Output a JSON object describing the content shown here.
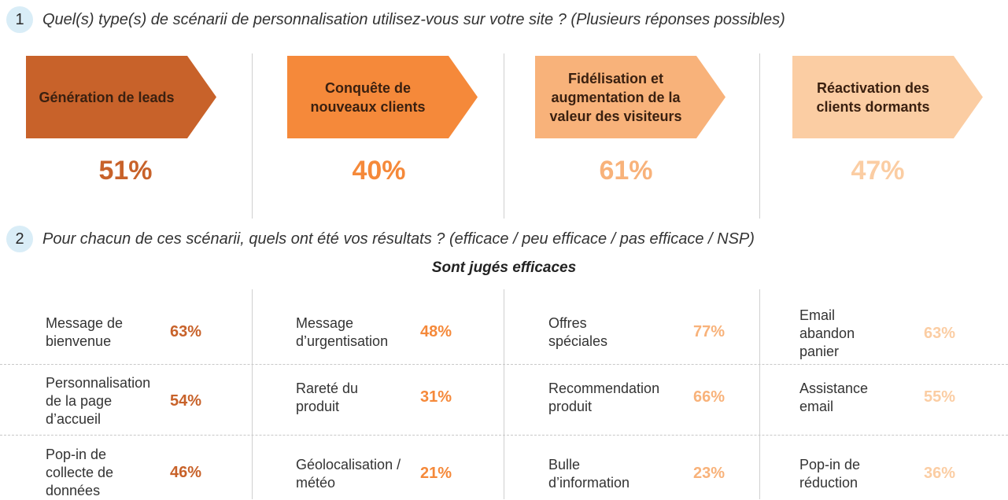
{
  "question1": {
    "number": "1",
    "text": "Quel(s) type(s) de scénarii de personnalisation utilisez-vous sur votre site ? (Plusieurs réponses possibles)"
  },
  "question2": {
    "number": "2",
    "text": "Pour chacun de ces scénarii, quels ont été vos résultats ? (efficace / peu efficace / pas efficace / NSP)"
  },
  "subtitle": "Sont jugés efficaces",
  "colors": {
    "c1": "#c8622a",
    "c2": "#f5893a",
    "c3": "#f8b27a",
    "c4": "#fbcda3"
  },
  "scenarios": [
    {
      "label": "Génération de leads",
      "percent": "51%"
    },
    {
      "label": "Conquête de nouveaux clients",
      "percent": "40%"
    },
    {
      "label": "Fidélisation et augmentation de la valeur des visiteurs",
      "percent": "61%"
    },
    {
      "label": "Réactivation des clients dormants",
      "percent": "47%"
    }
  ],
  "results": [
    [
      {
        "label": "Message de bienvenue",
        "percent": "63%"
      },
      {
        "label": "Personnalisation de la page d’accueil",
        "percent": "54%"
      },
      {
        "label": "Pop-in de collecte de données",
        "percent": "46%"
      }
    ],
    [
      {
        "label": "Message d’urgentisation",
        "percent": "48%"
      },
      {
        "label": "Rareté du produit",
        "percent": "31%"
      },
      {
        "label": "Géolocalisation / météo",
        "percent": "21%"
      }
    ],
    [
      {
        "label": "Offres spéciales",
        "percent": "77%"
      },
      {
        "label": "Recommendation produit",
        "percent": "66%"
      },
      {
        "label": "Bulle d’information",
        "percent": "23%"
      }
    ],
    [
      {
        "label": "Email abandon panier",
        "percent": "63%"
      },
      {
        "label": "Assistance email",
        "percent": "55%"
      },
      {
        "label": "Pop-in de réduction",
        "percent": "36%"
      }
    ]
  ]
}
